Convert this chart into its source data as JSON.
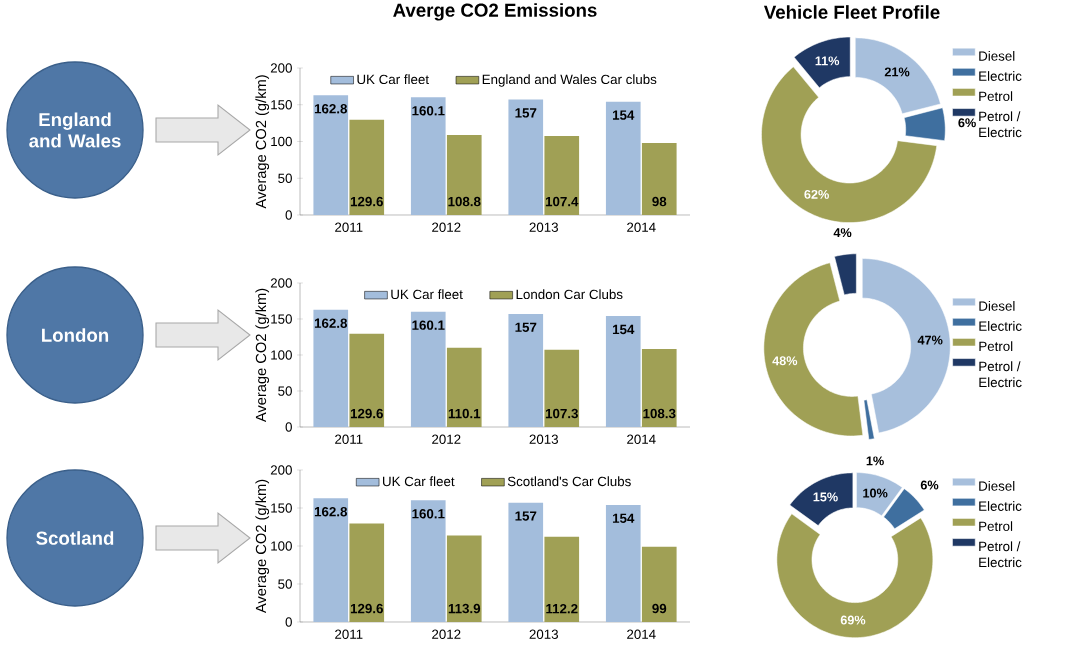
{
  "chart_data": [
    {
      "type": "bar",
      "title": "Averge CO2 Emissions",
      "annotations": [
        "England and Wales"
      ],
      "categories": [
        "2011",
        "2012",
        "2013",
        "2014"
      ],
      "ylabel": "Average CO2 (g/km)",
      "ylim": [
        0,
        200
      ],
      "yticks": [
        0,
        50,
        100,
        150,
        200
      ],
      "legend": "top",
      "series": [
        {
          "name": "UK Car fleet",
          "color": "#a3bddc",
          "values": [
            162.8,
            160.1,
            157,
            154
          ],
          "value_labels": [
            "162.8",
            "160.1",
            "157",
            "154"
          ]
        },
        {
          "name": "England and Wales Car clubs",
          "color": "#a0a055",
          "values": [
            129.6,
            108.8,
            107.4,
            98
          ],
          "value_labels": [
            "129.6",
            "108.8",
            "107.4",
            "98"
          ]
        }
      ]
    },
    {
      "type": "bar",
      "annotations": [
        "London"
      ],
      "categories": [
        "2011",
        "2012",
        "2013",
        "2014"
      ],
      "ylabel": "Average CO2 (g/km)",
      "ylim": [
        0,
        200
      ],
      "yticks": [
        0,
        50,
        100,
        150,
        200
      ],
      "legend": "top",
      "series": [
        {
          "name": "UK Car fleet",
          "color": "#a3bddc",
          "values": [
            162.8,
            160.1,
            157,
            154
          ],
          "value_labels": [
            "162.8",
            "160.1",
            "157",
            "154"
          ]
        },
        {
          "name": "London Car Clubs",
          "color": "#a0a055",
          "values": [
            129.6,
            110.1,
            107.3,
            108.3
          ],
          "value_labels": [
            "129.6",
            "110.1",
            "107.3",
            "108.3"
          ]
        }
      ]
    },
    {
      "type": "bar",
      "annotations": [
        "Scotland"
      ],
      "categories": [
        "2011",
        "2012",
        "2013",
        "2014"
      ],
      "ylabel": "Average CO2 (g/km)",
      "ylim": [
        0,
        200
      ],
      "yticks": [
        0,
        50,
        100,
        150,
        200
      ],
      "legend": "top",
      "series": [
        {
          "name": "UK Car fleet",
          "color": "#a3bddc",
          "values": [
            162.8,
            160.1,
            157,
            154
          ],
          "value_labels": [
            "162.8",
            "160.1",
            "157",
            "154"
          ]
        },
        {
          "name": "Scotland's Car Clubs",
          "color": "#a0a055",
          "values": [
            129.6,
            113.9,
            112.2,
            99
          ],
          "value_labels": [
            "129.6",
            "113.9",
            "112.2",
            "99"
          ]
        }
      ]
    },
    {
      "type": "donut",
      "title": "Vehicle Fleet Profile",
      "categories": [
        "Diesel",
        "Electric",
        "Petrol",
        "Petrol / Electric"
      ],
      "values": [
        21,
        6,
        62,
        11
      ],
      "value_labels": [
        "21%",
        "6%",
        "62%",
        "11%"
      ],
      "colors": [
        "#a7bfdc",
        "#3f6f9f",
        "#a0a055",
        "#1f3864"
      ],
      "legend": "right"
    },
    {
      "type": "donut",
      "categories": [
        "Diesel",
        "Electric",
        "Petrol",
        "Petrol / Electric"
      ],
      "values": [
        47,
        1,
        48,
        4
      ],
      "value_labels": [
        "47%",
        "1%",
        "48%",
        "4%"
      ],
      "colors": [
        "#a7bfdc",
        "#3f6f9f",
        "#a0a055",
        "#1f3864"
      ],
      "legend": "right"
    },
    {
      "type": "donut",
      "categories": [
        "Diesel",
        "Electric",
        "Petrol",
        "Petrol / Electric"
      ],
      "values": [
        10,
        6,
        69,
        15
      ],
      "value_labels": [
        "10%",
        "6%",
        "69%",
        "15%"
      ],
      "colors": [
        "#a7bfdc",
        "#3f6f9f",
        "#a0a055",
        "#1f3864"
      ],
      "legend": "right"
    }
  ]
}
